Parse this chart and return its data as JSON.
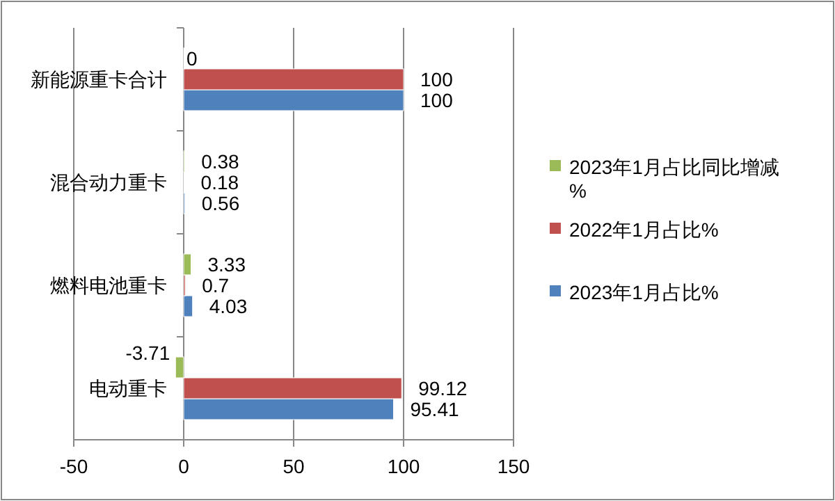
{
  "chart_data": {
    "type": "bar",
    "orientation": "horizontal",
    "categories": [
      "新能源重卡合计",
      "混合动力重卡",
      "燃料电池重卡",
      "电动重卡"
    ],
    "series": [
      {
        "name": "2023年1月占比%",
        "color": "#4f81bd",
        "values": [
          100,
          0.56,
          4.03,
          95.41
        ]
      },
      {
        "name": "2022年1月占比%",
        "color": "#c0504d",
        "values": [
          100,
          0.18,
          0.7,
          99.12
        ]
      },
      {
        "name": "2023年1月占比同比增减%",
        "color": "#9bbb59",
        "values": [
          0,
          0.38,
          3.33,
          -3.71
        ]
      }
    ],
    "xlim": [
      -50,
      150
    ],
    "xticks": [
      -50,
      0,
      50,
      100,
      150
    ],
    "grid": "x",
    "legend": "right",
    "data_labels": true
  }
}
